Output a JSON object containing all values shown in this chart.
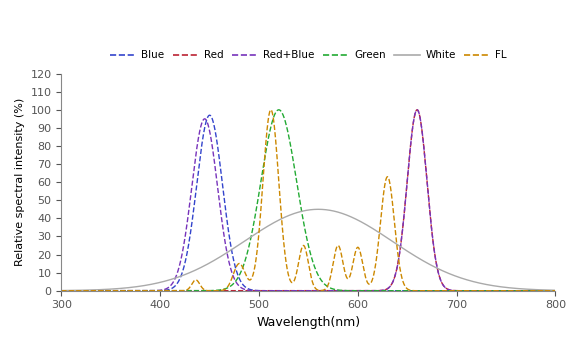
{
  "title": "",
  "xlabel": "Wavelength(nm)",
  "ylabel": "Relative spectral intensity (%)",
  "xlim": [
    300,
    800
  ],
  "ylim": [
    0,
    120
  ],
  "yticks": [
    0,
    10,
    20,
    30,
    40,
    50,
    60,
    70,
    80,
    90,
    100,
    110,
    120
  ],
  "xticks": [
    300,
    400,
    500,
    600,
    700,
    800
  ],
  "legend_labels": [
    "Blue",
    "Red",
    "Red+Blue",
    "Green",
    "White",
    "FL"
  ],
  "colors": {
    "blue": "#3344cc",
    "red": "#bb2233",
    "red_blue": "#7733bb",
    "green": "#22aa33",
    "white": "#aaaaaa",
    "fl": "#cc8800"
  },
  "bg_color": "#ffffff"
}
